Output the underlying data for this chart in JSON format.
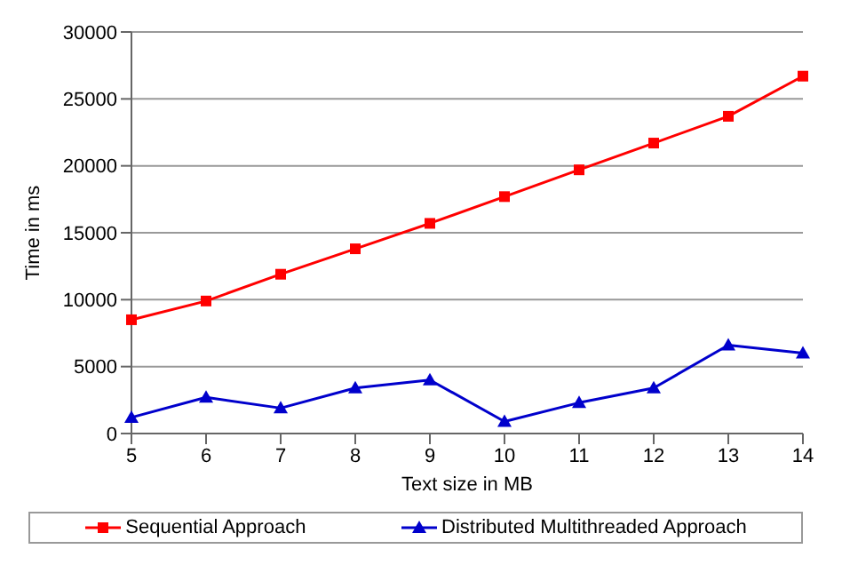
{
  "chart_data": {
    "type": "line",
    "xlabel": "Text size in MB",
    "ylabel": "Time in ms",
    "categories": [
      "5",
      "6",
      "7",
      "8",
      "9",
      "10",
      "11",
      "12",
      "13",
      "14"
    ],
    "series": [
      {
        "name": "Sequential Approach",
        "color": "#ff0000",
        "marker": "square",
        "values": [
          8500,
          9900,
          11900,
          13800,
          15700,
          17700,
          19700,
          21700,
          23700,
          26700
        ]
      },
      {
        "name": "Distributed Multithreaded Approach",
        "color": "#0000cc",
        "marker": "triangle",
        "values": [
          1200,
          2700,
          1900,
          3400,
          4000,
          900,
          2300,
          3400,
          6600,
          6000
        ]
      }
    ],
    "ylim": [
      0,
      30000
    ],
    "yticks": [
      0,
      5000,
      10000,
      15000,
      20000,
      25000,
      30000
    ],
    "grid": "y",
    "legend": "bottom"
  }
}
